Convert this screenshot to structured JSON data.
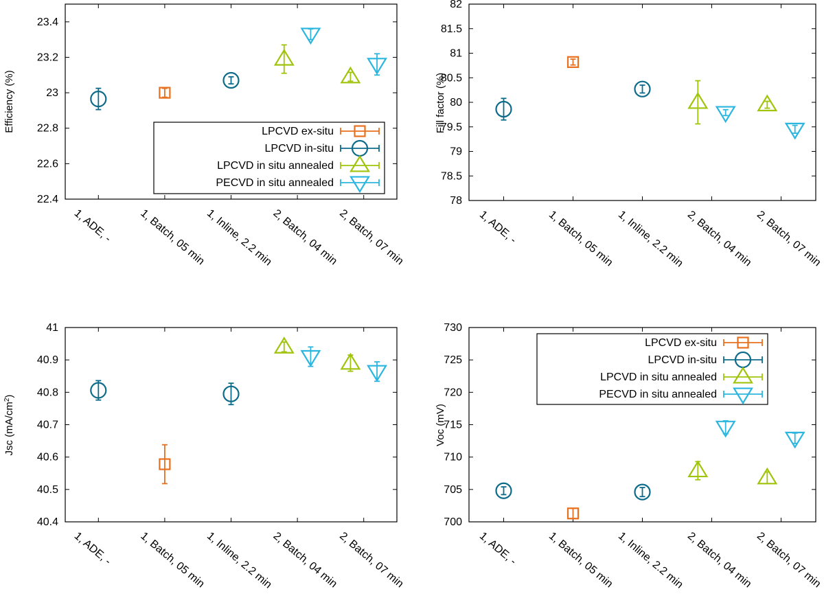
{
  "series_styles": [
    {
      "key": "lpcvd_ex",
      "marker": "square",
      "color": "#e8701e"
    },
    {
      "key": "lpcvd_in",
      "marker": "circle",
      "color": "#0d6b8a"
    },
    {
      "key": "lpcvd_ann",
      "marker": "triangle-up",
      "color": "#a0c40c"
    },
    {
      "key": "pecvd_ann",
      "marker": "triangle-down",
      "color": "#2bb6df"
    }
  ],
  "chart_data": [
    {
      "type": "scatter",
      "id": "efficiency",
      "ylabel": "Efficiency (%)",
      "categories": [
        "1, ADE, -",
        "1, Batch, 05 min",
        "1, Inline, 2.2 min",
        "2, Batch, 04 min",
        "2, Batch, 07 min"
      ],
      "ylim": [
        22.4,
        23.5
      ],
      "yticks": [
        22.4,
        22.6,
        22.8,
        23,
        23.2,
        23.4
      ],
      "ytick_labels": [
        "22.4",
        "22.6",
        "22.8",
        "23",
        "23.2",
        "23.4"
      ],
      "legend": "bottom-right",
      "series": [
        {
          "name": "LPCVD ex-situ",
          "points": [
            {
              "x": 1,
              "y": 23.0,
              "err": 0.025
            }
          ]
        },
        {
          "name": "LPCVD in-situ",
          "points": [
            {
              "x": 0,
              "y": 22.965,
              "err": 0.06
            },
            {
              "x": 2,
              "y": 23.07,
              "err": 0.02
            }
          ]
        },
        {
          "name": "LPCVD in situ annealed",
          "points": [
            {
              "x": 2.8,
              "y": 23.19,
              "err": 0.08
            },
            {
              "x": 3.8,
              "y": 23.09,
              "err": 0.025
            }
          ]
        },
        {
          "name": "PECVD in situ annealed",
          "points": [
            {
              "x": 3.2,
              "y": 23.33,
              "err": 0.03
            },
            {
              "x": 4.2,
              "y": 23.16,
              "err": 0.06
            }
          ]
        }
      ]
    },
    {
      "type": "scatter",
      "id": "fillfactor",
      "ylabel": "Fill factor (%)",
      "categories": [
        "1, ADE, -",
        "1, Batch, 05 min",
        "1, Inline, 2.2 min",
        "2, Batch, 04 min",
        "2, Batch, 07 min"
      ],
      "ylim": [
        78,
        82
      ],
      "yticks": [
        78,
        78.5,
        79,
        79.5,
        80,
        80.5,
        81,
        81.5,
        82
      ],
      "ytick_labels": [
        "78",
        "78.5",
        "79",
        "79.5",
        "80",
        "80.5",
        "81",
        "81.5",
        "82"
      ],
      "legend": "none",
      "series": [
        {
          "name": "LPCVD ex-situ",
          "points": [
            {
              "x": 1,
              "y": 80.82,
              "err": 0.06
            }
          ]
        },
        {
          "name": "LPCVD in-situ",
          "points": [
            {
              "x": 0,
              "y": 79.86,
              "err": 0.22
            },
            {
              "x": 2,
              "y": 80.27,
              "err": 0.08
            }
          ]
        },
        {
          "name": "LPCVD in situ annealed",
          "points": [
            {
              "x": 2.8,
              "y": 80.0,
              "err": 0.44
            },
            {
              "x": 3.8,
              "y": 79.95,
              "err": 0.07
            }
          ]
        },
        {
          "name": "PECVD in situ annealed",
          "points": [
            {
              "x": 3.2,
              "y": 79.79,
              "err": 0.06
            },
            {
              "x": 4.2,
              "y": 79.45,
              "err": 0.08
            }
          ]
        }
      ]
    },
    {
      "type": "scatter",
      "id": "jsc",
      "ylabel": "Jsc (mA/cm",
      "ylabel_sup": "2",
      "ylabel_tail": ")",
      "categories": [
        "1, ADE, -",
        "1, Batch, 05 min",
        "1, Inline, 2.2 min",
        "2, Batch, 04 min",
        "2, Batch, 07 min"
      ],
      "ylim": [
        40.4,
        41
      ],
      "yticks": [
        40.4,
        40.5,
        40.6,
        40.7,
        40.8,
        40.9,
        41
      ],
      "ytick_labels": [
        "40.4",
        "40.5",
        "40.6",
        "40.7",
        "40.8",
        "40.9",
        "41"
      ],
      "legend": "none",
      "series": [
        {
          "name": "LPCVD ex-situ",
          "points": [
            {
              "x": 1,
              "y": 40.578,
              "err": 0.06
            }
          ]
        },
        {
          "name": "LPCVD in-situ",
          "points": [
            {
              "x": 0,
              "y": 40.806,
              "err": 0.03
            },
            {
              "x": 2,
              "y": 40.795,
              "err": 0.033
            }
          ]
        },
        {
          "name": "LPCVD in situ annealed",
          "points": [
            {
              "x": 2.8,
              "y": 40.94,
              "err": 0.015
            },
            {
              "x": 3.8,
              "y": 40.89,
              "err": 0.025
            }
          ]
        },
        {
          "name": "PECVD in situ annealed",
          "points": [
            {
              "x": 3.2,
              "y": 40.91,
              "err": 0.03
            },
            {
              "x": 4.2,
              "y": 40.864,
              "err": 0.03
            }
          ]
        }
      ]
    },
    {
      "type": "scatter",
      "id": "voc",
      "ylabel": "Voc (mV)",
      "categories": [
        "1, ADE, -",
        "1, Batch, 05 min",
        "1, Inline, 2.2 min",
        "2, Batch, 04 min",
        "2, Batch, 07 min"
      ],
      "ylim": [
        700,
        730
      ],
      "yticks": [
        700,
        705,
        710,
        715,
        720,
        725,
        730
      ],
      "ytick_labels": [
        "700",
        "705",
        "710",
        "715",
        "720",
        "725",
        "730"
      ],
      "legend": "top-right",
      "series": [
        {
          "name": "LPCVD ex-situ",
          "points": [
            {
              "x": 1,
              "y": 701.3,
              "err": 0.8
            }
          ]
        },
        {
          "name": "LPCVD in-situ",
          "points": [
            {
              "x": 0,
              "y": 704.8,
              "err": 0.6
            },
            {
              "x": 2,
              "y": 704.6,
              "err": 0.7
            }
          ]
        },
        {
          "name": "LPCVD in situ annealed",
          "points": [
            {
              "x": 2.8,
              "y": 707.9,
              "err": 1.4
            },
            {
              "x": 3.8,
              "y": 706.8,
              "err": 0.9
            }
          ]
        },
        {
          "name": "PECVD in situ annealed",
          "points": [
            {
              "x": 3.2,
              "y": 714.6,
              "err": 1.0
            },
            {
              "x": 4.2,
              "y": 712.9,
              "err": 0.8
            }
          ]
        }
      ]
    }
  ]
}
